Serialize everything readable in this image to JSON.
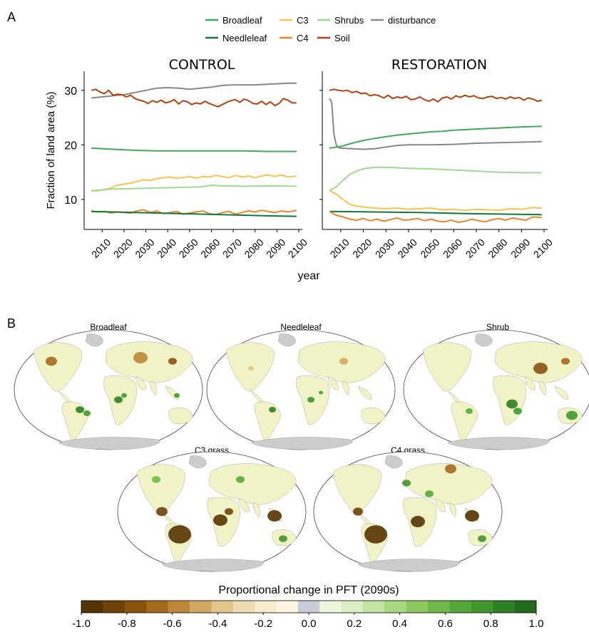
{
  "panel_labels": [
    "A",
    "B"
  ],
  "legend": [
    {
      "name": "Broadleaf",
      "color": "#3daa5c"
    },
    {
      "name": "C3",
      "color": "#f7c44f"
    },
    {
      "name": "Shrubs",
      "color": "#9fd891"
    },
    {
      "name": "disturbance",
      "color": "#888888"
    },
    {
      "name": "Needleleaf",
      "color": "#117a3a"
    },
    {
      "name": "C4",
      "color": "#e9862b"
    },
    {
      "name": "Soil",
      "color": "#b5400f"
    }
  ],
  "map_titles": [
    "Broadleaf",
    "Needleleaf",
    "Shrub",
    "C3 grass",
    "C4 grass"
  ],
  "colorbar": {
    "title": "Proportional change in PFT (2090s)",
    "ticks": [
      "-1.0",
      "-0.8",
      "-0.6",
      "-0.4",
      "-0.2",
      "0.0",
      "0.2",
      "0.4",
      "0.6",
      "0.8",
      "1.0"
    ],
    "colors": [
      "#553300",
      "#6e4108",
      "#8a520f",
      "#a36a1c",
      "#be8637",
      "#d2a760",
      "#e3c58b",
      "#efdcb0",
      "#f7ebcd",
      "#fcf5e4",
      "#c9ccd6",
      "#edf6de",
      "#dcefc4",
      "#c3e3a2",
      "#a8d780",
      "#8cc963",
      "#6fb94a",
      "#56a83a",
      "#41952d",
      "#2f7f24",
      "#226a1d"
    ]
  },
  "chart_data": [
    {
      "type": "line",
      "title": "CONTROL",
      "xlabel": "year",
      "ylabel": "Fraction of land area (%)",
      "xlim": [
        2005,
        2100
      ],
      "ylim": [
        4.5,
        33.5
      ],
      "xticks": [
        2010,
        2020,
        2030,
        2040,
        2050,
        2060,
        2070,
        2080,
        2090,
        2100
      ],
      "yticks": [
        10,
        20,
        30
      ],
      "series": [
        {
          "name": "disturbance",
          "color": "#888888",
          "x": [
            2005,
            2010,
            2015,
            2020,
            2025,
            2030,
            2035,
            2040,
            2045,
            2050,
            2055,
            2060,
            2065,
            2070,
            2075,
            2080,
            2085,
            2090,
            2095,
            2099
          ],
          "values": [
            28.6,
            28.8,
            29.0,
            29.2,
            29.6,
            30.0,
            30.4,
            30.5,
            30.4,
            30.2,
            30.4,
            30.6,
            30.9,
            31.0,
            31.0,
            31.0,
            31.1,
            31.2,
            31.3,
            31.3
          ]
        },
        {
          "name": "Soil",
          "color": "#b5400f",
          "x": [
            2005,
            2007,
            2009,
            2011,
            2013,
            2015,
            2017,
            2019,
            2021,
            2023,
            2025,
            2027,
            2029,
            2031,
            2033,
            2035,
            2037,
            2039,
            2041,
            2043,
            2045,
            2047,
            2049,
            2051,
            2053,
            2055,
            2057,
            2059,
            2061,
            2063,
            2065,
            2067,
            2069,
            2071,
            2073,
            2075,
            2077,
            2079,
            2081,
            2083,
            2085,
            2087,
            2089,
            2091,
            2093,
            2095,
            2097,
            2099
          ],
          "values": [
            30.0,
            30.2,
            29.7,
            29.4,
            30.0,
            29.1,
            29.3,
            29.2,
            28.8,
            29.1,
            28.5,
            28.2,
            28.0,
            27.6,
            28.1,
            27.8,
            28.2,
            27.7,
            27.9,
            28.3,
            27.5,
            28.1,
            27.9,
            27.4,
            27.7,
            27.5,
            28.0,
            27.6,
            27.3,
            27.0,
            27.4,
            27.8,
            28.1,
            28.3,
            27.8,
            28.4,
            28.1,
            27.6,
            27.5,
            28.0,
            27.4,
            27.9,
            27.2,
            27.6,
            28.5,
            28.2,
            27.7,
            27.7
          ]
        },
        {
          "name": "Broadleaf",
          "color": "#3daa5c",
          "x": [
            2005,
            2015,
            2025,
            2035,
            2045,
            2055,
            2065,
            2075,
            2085,
            2099
          ],
          "values": [
            19.4,
            19.2,
            19.0,
            18.9,
            18.9,
            18.9,
            18.9,
            18.9,
            18.8,
            18.8
          ]
        },
        {
          "name": "C3",
          "color": "#f7c44f",
          "x": [
            2005,
            2008,
            2011,
            2014,
            2017,
            2020,
            2023,
            2026,
            2029,
            2032,
            2035,
            2038,
            2041,
            2044,
            2047,
            2050,
            2053,
            2056,
            2059,
            2062,
            2065,
            2068,
            2071,
            2074,
            2077,
            2080,
            2083,
            2086,
            2089,
            2092,
            2095,
            2099
          ],
          "values": [
            11.5,
            11.6,
            11.8,
            12.1,
            12.6,
            12.8,
            13.0,
            13.3,
            13.6,
            13.5,
            13.8,
            14.0,
            14.1,
            13.9,
            14.0,
            14.2,
            13.9,
            14.2,
            14.1,
            14.4,
            14.2,
            14.0,
            14.4,
            14.1,
            14.3,
            14.0,
            14.3,
            14.5,
            14.2,
            14.5,
            14.1,
            14.3
          ]
        },
        {
          "name": "Shrubs",
          "color": "#9fd891",
          "x": [
            2005,
            2015,
            2025,
            2035,
            2045,
            2055,
            2060,
            2065,
            2075,
            2085,
            2099
          ],
          "values": [
            11.6,
            11.9,
            12.0,
            12.1,
            12.2,
            12.3,
            12.6,
            12.5,
            12.4,
            12.5,
            12.4
          ]
        },
        {
          "name": "C4",
          "color": "#e9862b",
          "x": [
            2005,
            2008,
            2011,
            2014,
            2017,
            2020,
            2023,
            2026,
            2029,
            2032,
            2035,
            2038,
            2041,
            2044,
            2047,
            2050,
            2053,
            2056,
            2059,
            2062,
            2065,
            2068,
            2071,
            2074,
            2077,
            2080,
            2083,
            2086,
            2089,
            2092,
            2095,
            2099
          ],
          "values": [
            7.9,
            7.7,
            7.8,
            7.5,
            7.7,
            7.6,
            7.5,
            7.9,
            8.1,
            7.6,
            7.9,
            7.4,
            7.6,
            7.8,
            7.3,
            7.5,
            7.7,
            7.9,
            7.4,
            7.2,
            7.6,
            7.8,
            7.3,
            7.6,
            7.9,
            7.7,
            8.0,
            7.8,
            7.6,
            7.9,
            7.7,
            8.0
          ]
        },
        {
          "name": "Needleleaf",
          "color": "#117a3a",
          "x": [
            2005,
            2025,
            2045,
            2065,
            2085,
            2099
          ],
          "values": [
            7.8,
            7.6,
            7.4,
            7.2,
            7.0,
            6.9
          ]
        }
      ]
    },
    {
      "type": "line",
      "title": "RESTORATION",
      "xlabel": "year",
      "ylabel": "",
      "xlim": [
        2005,
        2100
      ],
      "ylim": [
        4.5,
        33.5
      ],
      "xticks": [
        2010,
        2020,
        2030,
        2040,
        2050,
        2060,
        2070,
        2080,
        2090,
        2100
      ],
      "yticks": [
        10,
        20,
        30
      ],
      "series": [
        {
          "name": "disturbance",
          "color": "#888888",
          "x": [
            2005,
            2006,
            2007,
            2008,
            2009,
            2010,
            2015,
            2020,
            2025,
            2030,
            2035,
            2040,
            2050,
            2060,
            2070,
            2080,
            2090,
            2099
          ],
          "values": [
            28.5,
            27.8,
            22.0,
            20.0,
            19.5,
            19.4,
            19.3,
            19.2,
            19.3,
            19.6,
            19.9,
            20.0,
            20.0,
            20.1,
            20.3,
            20.4,
            20.5,
            20.6
          ]
        },
        {
          "name": "Soil",
          "color": "#b5400f",
          "x": [
            2005,
            2007,
            2009,
            2011,
            2013,
            2015,
            2017,
            2019,
            2021,
            2023,
            2025,
            2027,
            2029,
            2031,
            2033,
            2035,
            2037,
            2039,
            2041,
            2043,
            2045,
            2047,
            2049,
            2051,
            2053,
            2055,
            2057,
            2059,
            2061,
            2063,
            2065,
            2067,
            2069,
            2071,
            2073,
            2075,
            2077,
            2079,
            2081,
            2083,
            2085,
            2087,
            2089,
            2091,
            2093,
            2095,
            2097,
            2099
          ],
          "values": [
            30.0,
            30.2,
            30.0,
            29.9,
            30.0,
            29.6,
            29.8,
            29.4,
            29.5,
            29.0,
            29.2,
            29.0,
            28.6,
            29.1,
            28.5,
            28.8,
            28.6,
            28.9,
            28.3,
            28.4,
            28.8,
            28.3,
            28.0,
            28.4,
            27.9,
            28.6,
            28.8,
            28.4,
            29.0,
            28.7,
            29.1,
            28.8,
            29.0,
            28.6,
            28.5,
            28.8,
            28.9,
            28.5,
            28.7,
            28.4,
            28.8,
            28.5,
            28.7,
            28.2,
            28.6,
            28.4,
            28.0,
            28.2
          ]
        },
        {
          "name": "Broadleaf",
          "color": "#3daa5c",
          "x": [
            2005,
            2010,
            2015,
            2020,
            2025,
            2030,
            2035,
            2040,
            2045,
            2050,
            2055,
            2060,
            2070,
            2080,
            2090,
            2099
          ],
          "values": [
            19.4,
            19.7,
            20.3,
            20.8,
            21.2,
            21.5,
            21.8,
            22.0,
            22.2,
            22.4,
            22.5,
            22.7,
            22.9,
            23.1,
            23.3,
            23.4
          ]
        },
        {
          "name": "Shrubs",
          "color": "#9fd891",
          "x": [
            2005,
            2008,
            2011,
            2014,
            2017,
            2020,
            2025,
            2030,
            2035,
            2040,
            2050,
            2060,
            2070,
            2080,
            2090,
            2099
          ],
          "values": [
            11.6,
            12.3,
            13.5,
            14.6,
            15.2,
            15.6,
            15.9,
            15.9,
            15.8,
            15.7,
            15.6,
            15.4,
            15.2,
            15.0,
            14.9,
            14.9
          ]
        },
        {
          "name": "C3",
          "color": "#f7c44f",
          "x": [
            2005,
            2008,
            2011,
            2014,
            2017,
            2020,
            2025,
            2030,
            2035,
            2040,
            2045,
            2050,
            2055,
            2060,
            2065,
            2070,
            2075,
            2080,
            2085,
            2090,
            2095,
            2099
          ],
          "values": [
            11.6,
            11.0,
            10.0,
            9.1,
            8.8,
            8.6,
            8.4,
            8.3,
            8.4,
            8.2,
            8.3,
            8.4,
            8.1,
            8.2,
            8.0,
            8.2,
            8.1,
            8.0,
            8.3,
            8.2,
            8.5,
            8.4
          ]
        },
        {
          "name": "Needleleaf",
          "color": "#117a3a",
          "x": [
            2005,
            2025,
            2045,
            2065,
            2085,
            2099
          ],
          "values": [
            7.8,
            7.7,
            7.6,
            7.4,
            7.3,
            7.2
          ]
        },
        {
          "name": "C4",
          "color": "#e9862b",
          "x": [
            2005,
            2008,
            2011,
            2014,
            2017,
            2020,
            2023,
            2026,
            2029,
            2032,
            2035,
            2038,
            2041,
            2044,
            2047,
            2050,
            2053,
            2056,
            2059,
            2062,
            2065,
            2068,
            2071,
            2074,
            2077,
            2080,
            2083,
            2086,
            2089,
            2092,
            2095,
            2099
          ],
          "values": [
            7.8,
            7.1,
            6.8,
            6.4,
            6.2,
            6.5,
            6.1,
            6.4,
            6.0,
            6.3,
            6.6,
            6.2,
            6.3,
            6.5,
            6.1,
            6.4,
            6.0,
            5.9,
            6.2,
            5.8,
            6.0,
            6.4,
            6.1,
            5.9,
            6.3,
            6.5,
            6.2,
            6.6,
            6.4,
            6.2,
            6.8,
            6.7
          ]
        }
      ]
    }
  ]
}
